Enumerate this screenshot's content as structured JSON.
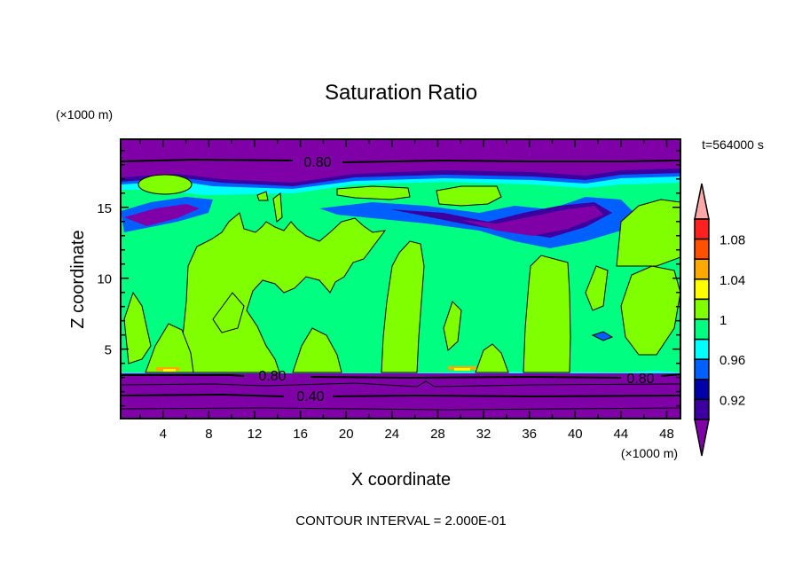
{
  "chart_data": {
    "type": "heatmap",
    "subtype": "filled-contour",
    "title": "Saturation Ratio",
    "xlabel": "X coordinate",
    "ylabel": "Z coordinate",
    "x_units": "(×1000 m)",
    "y_units": "(×1000 m)",
    "time_label": "t=564000 s",
    "footer": "CONTOUR INTERVAL = 2.000E-01",
    "xlim": [
      0.3,
      49.2
    ],
    "ylim": [
      0.1,
      19.8
    ],
    "x_ticks": [
      4,
      8,
      12,
      16,
      20,
      24,
      28,
      32,
      36,
      40,
      44,
      48
    ],
    "x_tick_labels": [
      "4",
      "8",
      "12",
      "16",
      "20",
      "24",
      "28",
      "32",
      "36",
      "40",
      "44",
      "48"
    ],
    "y_ticks": [
      5,
      10,
      15
    ],
    "y_tick_labels": [
      "5",
      "10",
      "15"
    ],
    "contour_line_labels": [
      "0.80",
      "0.80",
      "0.80",
      "0.40"
    ],
    "colorbar": {
      "levels": [
        1.1,
        1.08,
        1.06,
        1.04,
        1.02,
        1.0,
        0.98,
        0.96,
        0.94,
        0.92,
        0.9
      ],
      "labels": [
        "1.08",
        "1.04",
        "1",
        "0.96",
        "0.92"
      ],
      "label_levels": [
        1.08,
        1.04,
        1.0,
        0.96,
        0.92
      ],
      "colors": [
        "#ff2020",
        "#ff5000",
        "#ffa800",
        "#ffff00",
        "#80ff00",
        "#00ff80",
        "#00ffff",
        "#0060ff",
        "#0000a8",
        "#3c00a0"
      ],
      "over_color": "#ffa8a8",
      "under_color": "#8000a8"
    }
  }
}
